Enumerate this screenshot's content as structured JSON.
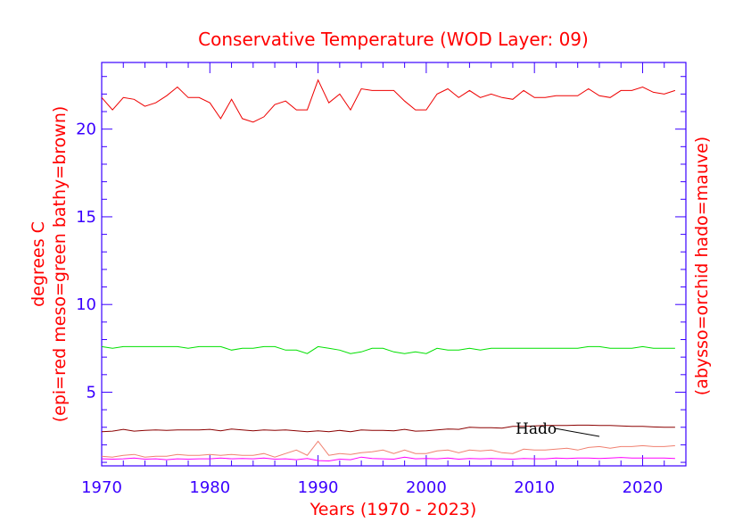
{
  "chart_data": {
    "type": "line",
    "title": "Conservative Temperature (WOD Layer: 09)",
    "xlabel": "Years (1970 - 2023)",
    "ylabel_left": [
      "degrees C",
      "(epi=red meso=green bathy=brown)"
    ],
    "ylabel_right": "(abysso=orchid hado=mauve)",
    "xlim": [
      1970,
      2024
    ],
    "ylim": [
      0.8,
      23.8
    ],
    "xticks": [
      1970,
      1980,
      1990,
      2000,
      2010,
      2020
    ],
    "yticks": [
      5,
      10,
      15,
      20
    ],
    "annotation": "Hado",
    "colors": {
      "axis": "#3a00ff",
      "text": "#ff0000"
    },
    "x": [
      1970,
      1971,
      1972,
      1973,
      1974,
      1975,
      1976,
      1977,
      1978,
      1979,
      1980,
      1981,
      1982,
      1983,
      1984,
      1985,
      1986,
      1987,
      1988,
      1989,
      1990,
      1991,
      1992,
      1993,
      1994,
      1995,
      1996,
      1997,
      1998,
      1999,
      2000,
      2001,
      2002,
      2003,
      2004,
      2005,
      2006,
      2007,
      2008,
      2009,
      2010,
      2011,
      2012,
      2013,
      2014,
      2015,
      2016,
      2017,
      2018,
      2019,
      2020,
      2021,
      2022,
      2023
    ],
    "series": [
      {
        "name": "epi",
        "color": "#ee0000",
        "values": [
          21.8,
          21.1,
          21.8,
          21.7,
          21.3,
          21.5,
          21.9,
          22.4,
          21.8,
          21.8,
          21.5,
          20.6,
          21.7,
          20.6,
          20.4,
          20.7,
          21.4,
          21.6,
          21.1,
          21.1,
          22.8,
          21.5,
          22.0,
          21.1,
          22.3,
          22.2,
          22.2,
          22.2,
          21.6,
          21.1,
          21.1,
          22.0,
          22.3,
          21.8,
          22.2,
          21.8,
          22.0,
          21.8,
          21.7,
          22.2,
          21.8,
          21.8,
          21.9,
          21.9,
          21.9,
          22.3,
          21.9,
          21.8,
          22.2,
          22.2,
          22.4,
          22.1,
          22.0,
          22.2
        ]
      },
      {
        "name": "meso",
        "color": "#00e000",
        "values": [
          7.6,
          7.5,
          7.6,
          7.6,
          7.6,
          7.6,
          7.6,
          7.6,
          7.5,
          7.6,
          7.6,
          7.6,
          7.4,
          7.5,
          7.5,
          7.6,
          7.6,
          7.4,
          7.4,
          7.2,
          7.6,
          7.5,
          7.4,
          7.2,
          7.3,
          7.5,
          7.5,
          7.3,
          7.2,
          7.3,
          7.2,
          7.5,
          7.4,
          7.4,
          7.5,
          7.4,
          7.5,
          7.5,
          7.5,
          7.5,
          7.5,
          7.5,
          7.5,
          7.5,
          7.5,
          7.6,
          7.6,
          7.5,
          7.5,
          7.5,
          7.6,
          7.5,
          7.5,
          7.5
        ]
      },
      {
        "name": "bathy",
        "color": "#8b0000",
        "values": [
          2.75,
          2.78,
          2.88,
          2.78,
          2.82,
          2.85,
          2.82,
          2.85,
          2.85,
          2.85,
          2.88,
          2.8,
          2.9,
          2.85,
          2.8,
          2.85,
          2.82,
          2.85,
          2.8,
          2.75,
          2.8,
          2.75,
          2.82,
          2.75,
          2.85,
          2.82,
          2.82,
          2.8,
          2.88,
          2.78,
          2.8,
          2.85,
          2.9,
          2.88,
          3.0,
          2.98,
          2.98,
          2.95,
          3.05,
          3.05,
          3.08,
          3.1,
          3.1,
          3.1,
          3.12,
          3.12,
          3.1,
          3.1,
          3.08,
          3.05,
          3.05,
          3.02,
          3.0,
          3.0
        ]
      },
      {
        "name": "hado",
        "color": "#f08070",
        "values": [
          1.35,
          1.3,
          1.4,
          1.45,
          1.3,
          1.35,
          1.35,
          1.45,
          1.4,
          1.4,
          1.45,
          1.4,
          1.45,
          1.4,
          1.4,
          1.5,
          1.3,
          1.5,
          1.7,
          1.4,
          2.2,
          1.4,
          1.5,
          1.45,
          1.55,
          1.6,
          1.7,
          1.5,
          1.7,
          1.5,
          1.5,
          1.65,
          1.7,
          1.55,
          1.7,
          1.65,
          1.7,
          1.55,
          1.5,
          1.75,
          1.7,
          1.7,
          1.75,
          1.8,
          1.7,
          1.85,
          1.9,
          1.8,
          1.9,
          1.9,
          1.95,
          1.9,
          1.9,
          1.95
        ]
      },
      {
        "name": "abysso",
        "color": "#ff00ff",
        "values": [
          1.2,
          1.18,
          1.2,
          1.25,
          1.18,
          1.2,
          1.15,
          1.2,
          1.18,
          1.2,
          1.2,
          1.25,
          1.2,
          1.22,
          1.2,
          1.25,
          1.18,
          1.2,
          1.15,
          1.22,
          1.1,
          1.08,
          1.18,
          1.15,
          1.3,
          1.22,
          1.2,
          1.18,
          1.3,
          1.2,
          1.22,
          1.2,
          1.25,
          1.18,
          1.22,
          1.2,
          1.22,
          1.2,
          1.18,
          1.22,
          1.2,
          1.2,
          1.25,
          1.22,
          1.25,
          1.25,
          1.22,
          1.25,
          1.28,
          1.25,
          1.25,
          1.25,
          1.25,
          1.22
        ]
      }
    ]
  }
}
